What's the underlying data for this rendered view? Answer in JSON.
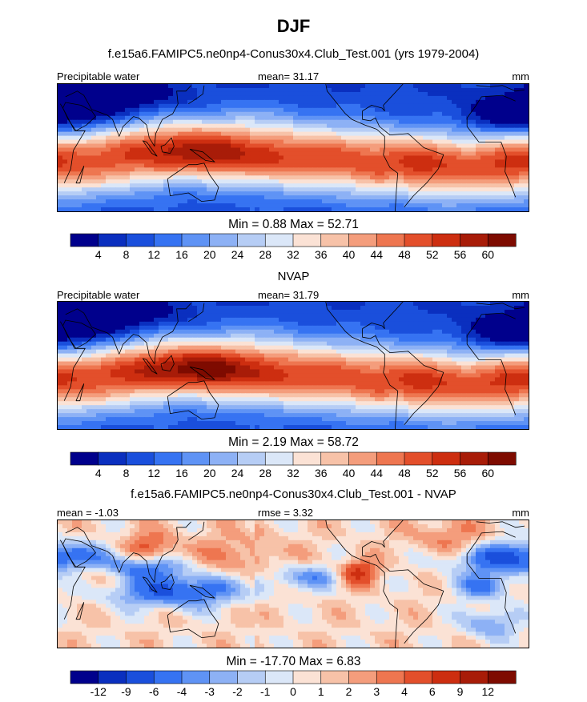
{
  "header": {
    "title": "DJF",
    "model_title": "f.e15a6.FAMIPC5.ne0np4-Conus30x4.Club_Test.001 (yrs 1979-2004)"
  },
  "panels": [
    {
      "id": "model",
      "label_left": "Precipitable water",
      "center": "mean=  31.17",
      "units": "mm",
      "stats": "Min =   0.88 Max =  52.71"
    },
    {
      "id": "obs",
      "title": "NVAP",
      "label_left": "Precipitable water",
      "center": "mean=  31.79",
      "units": "mm",
      "stats": "Min =   2.19 Max =  58.72"
    },
    {
      "id": "diff",
      "title": "f.e15a6.FAMIPC5.ne0np4-Conus30x4.Club_Test.001 - NVAP",
      "label_left": "mean =  -1.03",
      "center": "rmse =   3.32",
      "units": "mm",
      "stats": "Min = -17.70 Max =   6.83"
    }
  ],
  "colors": {
    "abs_scale": [
      "#00008c",
      "#0a2fbf",
      "#1a4fdc",
      "#3673f2",
      "#5f93f5",
      "#8db1f5",
      "#b6cdf5",
      "#dbe7f8",
      "#fbe2d5",
      "#f7c2a8",
      "#f49d7c",
      "#ee7650",
      "#e34f2b",
      "#cd2e10",
      "#a81c08",
      "#7e0b00"
    ],
    "diff_scale": [
      "#00008c",
      "#0a2fbf",
      "#1a4fdc",
      "#3673f2",
      "#5f93f5",
      "#8db1f5",
      "#b6cdf5",
      "#dbe7f8",
      "#fbe2d5",
      "#f7c2a8",
      "#f49d7c",
      "#ee7650",
      "#e34f2b",
      "#cd2e10",
      "#a81c08",
      "#7e0b00"
    ],
    "coast": "#000000"
  },
  "chart_data": [
    {
      "type": "heatmap",
      "title": "f.e15a6.FAMIPC5.ne0np4-Conus30x4.Club_Test.001 (yrs 1979-2004)",
      "variable": "Precipitable water",
      "units": "mm",
      "mean": 31.17,
      "min": 0.88,
      "max": 52.71,
      "colorbar_ticks": [
        "4",
        "8",
        "12",
        "16",
        "20",
        "24",
        "28",
        "32",
        "36",
        "40",
        "44",
        "48",
        "52",
        "56",
        "60"
      ]
    },
    {
      "type": "heatmap",
      "title": "NVAP",
      "variable": "Precipitable water",
      "units": "mm",
      "mean": 31.79,
      "min": 2.19,
      "max": 58.72,
      "colorbar_ticks": [
        "4",
        "8",
        "12",
        "16",
        "20",
        "24",
        "28",
        "32",
        "36",
        "40",
        "44",
        "48",
        "52",
        "56",
        "60"
      ]
    },
    {
      "type": "heatmap",
      "title": "f.e15a6.FAMIPC5.ne0np4-Conus30x4.Club_Test.001 - NVAP",
      "units": "mm",
      "mean": -1.03,
      "rmse": 3.32,
      "min": -17.7,
      "max": 6.83,
      "colorbar_ticks": [
        "-12",
        "-9",
        "-6",
        "-4",
        "-3",
        "-2",
        "-1",
        "0",
        "1",
        "2",
        "3",
        "4",
        "6",
        "9",
        "12"
      ]
    }
  ]
}
